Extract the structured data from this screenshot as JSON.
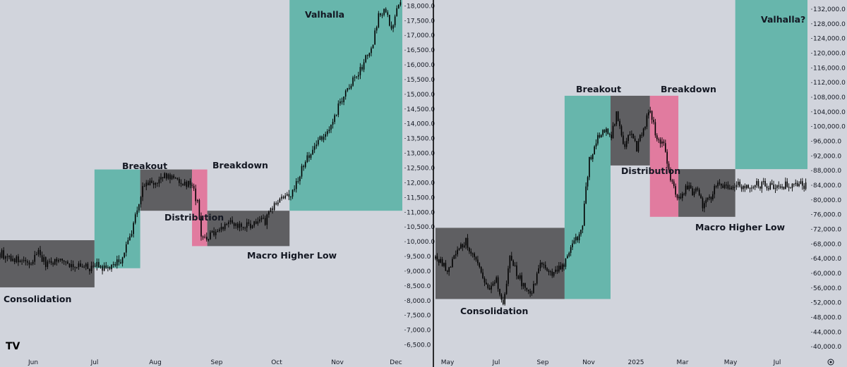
{
  "app": {
    "logo_text": "TV",
    "settings_icon": "gear-icon",
    "logo_icon": "tradingview-logo-icon"
  },
  "colors": {
    "background": "#d1d4dc",
    "consolidation_zone": "#5f5f62",
    "breakout_zone": "#67b6ac",
    "distribution_zone": "#5f5f62",
    "breakdown_zone": "#e17b9f",
    "higher_low_zone": "#5f5f62",
    "valhalla_zone": "#67b6ac",
    "candles": "#000000",
    "divider": "#000000"
  },
  "chart_data": [
    {
      "type": "candlestick",
      "title": "",
      "xlabel": "",
      "ylabel": "",
      "x_ticks": [
        "Jun",
        "Jul",
        "Aug",
        "Sep",
        "Oct",
        "Nov",
        "Dec"
      ],
      "y_ticks": [
        "6,500.0",
        "7,000.0",
        "7,500.0",
        "8,000.0",
        "8,500.0",
        "9,000.0",
        "9,500.0",
        "10,000.0",
        "10,500.0",
        "11,000.0",
        "11,500.0",
        "12,000.0",
        "12,500.0",
        "13,000.0",
        "13,500.0",
        "14,000.0",
        "14,500.0",
        "15,000.0",
        "15,500.0",
        "16,000.0",
        "16,500.0",
        "17,000.0",
        "17,500.0",
        "18,000.0"
      ],
      "ylim": [
        6250,
        18200
      ],
      "xlim_months": [
        0.0,
        6.6
      ],
      "zones": [
        {
          "label": "Consolidation",
          "color": "gray",
          "x_start_month": 0.0,
          "x_end_month": 1.55,
          "y_low": 8450,
          "y_high": 10050
        },
        {
          "label": "Breakout",
          "color": "teal",
          "x_start_month": 1.55,
          "x_end_month": 2.3,
          "y_low": 9100,
          "y_high": 12450
        },
        {
          "label": "Distribution",
          "color": "gray",
          "x_start_month": 2.3,
          "x_end_month": 3.15,
          "y_low": 11050,
          "y_high": 12450
        },
        {
          "label": "Breakdown",
          "color": "pink",
          "x_start_month": 3.15,
          "x_end_month": 3.4,
          "y_low": 9850,
          "y_high": 12450
        },
        {
          "label": "Macro Higher Low",
          "color": "gray",
          "x_start_month": 3.4,
          "x_end_month": 4.75,
          "y_low": 9850,
          "y_high": 11050
        },
        {
          "label": "Valhalla",
          "color": "teal",
          "x_start_month": 4.75,
          "x_end_month": 6.6,
          "y_low": 11050,
          "y_high": 18200
        }
      ],
      "price_path": [
        [
          0.0,
          9600
        ],
        [
          0.3,
          9350
        ],
        [
          0.5,
          9200
        ],
        [
          0.62,
          9700
        ],
        [
          0.75,
          9250
        ],
        [
          1.0,
          9400
        ],
        [
          1.2,
          9200
        ],
        [
          1.45,
          9100
        ],
        [
          1.55,
          9200
        ],
        [
          1.75,
          9050
        ],
        [
          2.0,
          9400
        ],
        [
          2.15,
          10300
        ],
        [
          2.35,
          11900
        ],
        [
          2.55,
          12000
        ],
        [
          2.75,
          12250
        ],
        [
          2.95,
          12050
        ],
        [
          3.15,
          11900
        ],
        [
          3.25,
          11200
        ],
        [
          3.3,
          10200
        ],
        [
          3.38,
          10100
        ],
        [
          3.55,
          10400
        ],
        [
          3.75,
          10700
        ],
        [
          3.95,
          10500
        ],
        [
          4.15,
          10600
        ],
        [
          4.35,
          10700
        ],
        [
          4.55,
          11400
        ],
        [
          4.75,
          11500
        ],
        [
          5.0,
          12700
        ],
        [
          5.2,
          13400
        ],
        [
          5.4,
          13700
        ],
        [
          5.55,
          14600
        ],
        [
          5.75,
          15300
        ],
        [
          5.9,
          15800
        ],
        [
          6.0,
          16200
        ],
        [
          6.1,
          16500
        ],
        [
          6.2,
          17600
        ],
        [
          6.32,
          18000
        ],
        [
          6.42,
          17200
        ],
        [
          6.5,
          17800
        ],
        [
          6.6,
          18200
        ]
      ]
    },
    {
      "type": "candlestick",
      "title": "",
      "xlabel": "",
      "ylabel": "",
      "x_ticks": [
        "May",
        "Jul",
        "Sep",
        "Nov",
        "2025",
        "Mar",
        "May",
        "Jul"
      ],
      "y_ticks": [
        "40,000.0",
        "44,000.0",
        "48,000.0",
        "52,000.0",
        "56,000.0",
        "60,000.0",
        "64,000.0",
        "68,000.0",
        "72,000.0",
        "76,000.0",
        "80,000.0",
        "84,000.0",
        "88,000.0",
        "92,000.0",
        "96,000.0",
        "100,000.0",
        "104,000.0",
        "108,000.0",
        "112,000.0",
        "116,000.0",
        "120,000.0",
        "124,000.0",
        "128,000.0",
        "132,000.0"
      ],
      "ylim": [
        38500,
        134500
      ],
      "xlim_months": [
        0.0,
        17.0
      ],
      "zones": [
        {
          "label": "Consolidation",
          "color": "gray",
          "x_start_month": 0.0,
          "x_end_month": 5.9,
          "y_low": 53000,
          "y_high": 72400
        },
        {
          "label": "Breakout",
          "color": "teal",
          "x_start_month": 5.9,
          "x_end_month": 8.0,
          "y_low": 53000,
          "y_high": 108400
        },
        {
          "label": "Distribution",
          "color": "gray",
          "x_start_month": 8.0,
          "x_end_month": 9.8,
          "y_low": 89400,
          "y_high": 108400
        },
        {
          "label": "Breakdown",
          "color": "pink",
          "x_start_month": 9.8,
          "x_end_month": 11.1,
          "y_low": 75400,
          "y_high": 108400
        },
        {
          "label": "Macro Higher Low",
          "color": "gray",
          "x_start_month": 11.1,
          "x_end_month": 13.7,
          "y_low": 75400,
          "y_high": 88400
        },
        {
          "label": "Valhalla?",
          "color": "teal",
          "x_start_month": 13.7,
          "x_end_month": 17.0,
          "y_low": 88400,
          "y_high": 134500
        }
      ],
      "price_path": [
        [
          0.0,
          64000
        ],
        [
          0.6,
          61000
        ],
        [
          1.0,
          66000
        ],
        [
          1.4,
          69000
        ],
        [
          1.9,
          62000
        ],
        [
          2.4,
          56000
        ],
        [
          2.8,
          58000
        ],
        [
          3.1,
          51000
        ],
        [
          3.4,
          64000
        ],
        [
          3.8,
          59000
        ],
        [
          4.3,
          54000
        ],
        [
          4.8,
          62000
        ],
        [
          5.3,
          60000
        ],
        [
          5.9,
          63000
        ],
        [
          6.3,
          68000
        ],
        [
          6.7,
          72000
        ],
        [
          7.0,
          90000
        ],
        [
          7.4,
          97000
        ],
        [
          7.8,
          99000
        ],
        [
          8.0,
          97000
        ],
        [
          8.3,
          104000
        ],
        [
          8.6,
          94000
        ],
        [
          8.9,
          98000
        ],
        [
          9.2,
          94000
        ],
        [
          9.5,
          100000
        ],
        [
          9.8,
          104000
        ],
        [
          10.1,
          97000
        ],
        [
          10.4,
          96000
        ],
        [
          10.7,
          86000
        ],
        [
          11.0,
          82000
        ],
        [
          11.2,
          80000
        ],
        [
          11.5,
          84000
        ],
        [
          11.8,
          82000
        ],
        [
          12.0,
          84000
        ],
        [
          12.2,
          77000
        ],
        [
          12.4,
          82000
        ],
        [
          12.6,
          80000
        ],
        [
          12.8,
          84000
        ]
      ]
    }
  ]
}
